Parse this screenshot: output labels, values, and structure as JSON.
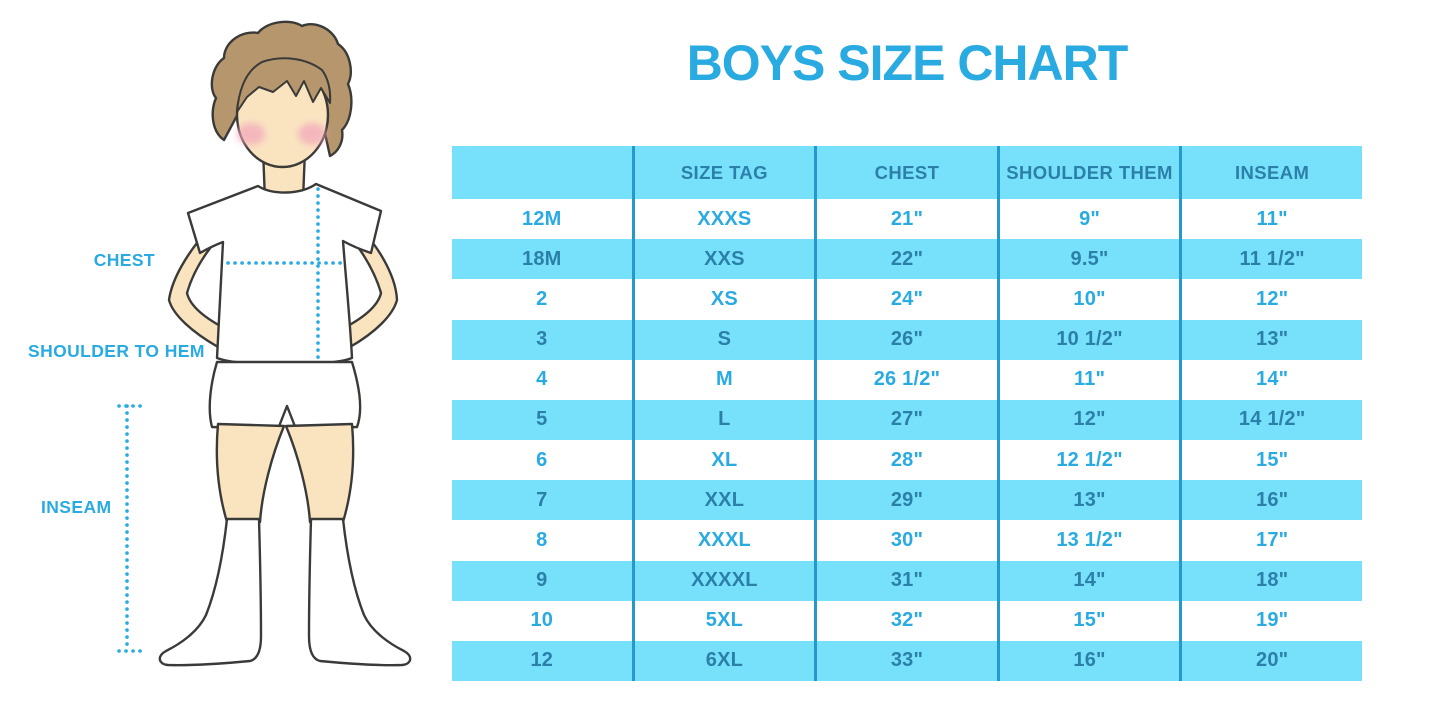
{
  "title": "BOYS SIZE CHART",
  "figure": {
    "labels": {
      "chest": "CHEST",
      "shoulder_to_hem": "SHOULDER TO HEM",
      "inseam": "INSEAM"
    }
  },
  "chart_data": {
    "type": "table",
    "title": "BOYS SIZE CHART",
    "columns": [
      "",
      "SIZE TAG",
      "CHEST",
      "SHOULDER THEM",
      "INSEAM"
    ],
    "rows": [
      [
        "12M",
        "XXXS",
        "21\"",
        "9\"",
        "11\""
      ],
      [
        "18M",
        "XXS",
        "22\"",
        "9.5\"",
        "11 1/2\""
      ],
      [
        "2",
        "XS",
        "24\"",
        "10\"",
        "12\""
      ],
      [
        "3",
        "S",
        "26\"",
        "10 1/2\"",
        "13\""
      ],
      [
        "4",
        "M",
        "26 1/2\"",
        "11\"",
        "14\""
      ],
      [
        "5",
        "L",
        "27\"",
        "12\"",
        "14 1/2\""
      ],
      [
        "6",
        "XL",
        "28\"",
        "12 1/2\"",
        "15\""
      ],
      [
        "7",
        "XXL",
        "29\"",
        "13\"",
        "16\""
      ],
      [
        "8",
        "XXXL",
        "30\"",
        "13 1/2\"",
        "17\""
      ],
      [
        "9",
        "XXXXL",
        "31\"",
        "14\"",
        "18\""
      ],
      [
        "10",
        "5XL",
        "32\"",
        "15\"",
        "19\""
      ],
      [
        "12",
        "6XL",
        "33\"",
        "16\"",
        "20\""
      ]
    ],
    "layout": {
      "header_background": "light-blue",
      "zebra": "rows alternate white / light-blue starting white",
      "grid": "vertical dividers only"
    }
  },
  "colors": {
    "accent": "#29ABE2",
    "table_fill": "#77E1FB",
    "divider": "#2599CC",
    "dark_text": "#2B80A9",
    "skin": "#FAE4C0",
    "hair": "#B6976D",
    "cheek": "#F2A8BC",
    "outline": "#3A3A38"
  }
}
